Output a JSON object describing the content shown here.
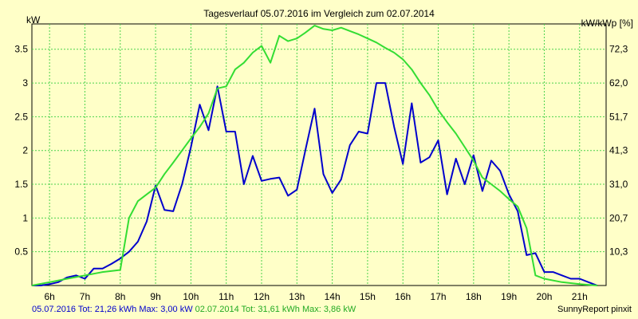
{
  "chart_data": {
    "type": "line",
    "title": "Tagesverlauf 05.07.2016 im Vergleich zum 02.07.2014",
    "ylabel_left": "kW",
    "ylabel_right": "kW/kWp [%]",
    "ylim": [
      0,
      3.875
    ],
    "grid": true,
    "x_ticks": [
      "6h",
      "7h",
      "8h",
      "9h",
      "10h",
      "11h",
      "12h",
      "13h",
      "14h",
      "15h",
      "16h",
      "17h",
      "18h",
      "19h",
      "20h",
      "21h"
    ],
    "y_ticks_left": [
      "0.5",
      "1",
      "1.5",
      "2",
      "2.5",
      "3",
      "3.5"
    ],
    "y_ticks_right": [
      "10,3",
      "20,7",
      "31,0",
      "41,3",
      "51,7",
      "62,0",
      "72,3"
    ],
    "colors": {
      "background": "#ffffc8",
      "grid": "#4cd24c",
      "axis": "#000000",
      "series_2016": "#0000cc",
      "series_2014": "#33dd33"
    },
    "series": [
      {
        "key": "s2016",
        "x": [
          5.5,
          5.75,
          6.0,
          6.25,
          6.5,
          6.75,
          7.0,
          7.25,
          7.5,
          7.75,
          8.0,
          8.25,
          8.5,
          8.75,
          9.0,
          9.25,
          9.5,
          9.75,
          10.0,
          10.25,
          10.5,
          10.75,
          11.0,
          11.25,
          11.5,
          11.75,
          12.0,
          12.25,
          12.5,
          12.75,
          13.0,
          13.25,
          13.5,
          13.75,
          14.0,
          14.25,
          14.5,
          14.75,
          15.0,
          15.25,
          15.5,
          15.75,
          16.0,
          16.25,
          16.5,
          16.75,
          17.0,
          17.25,
          17.5,
          17.75,
          18.0,
          18.25,
          18.5,
          18.75,
          19.0,
          19.25,
          19.5,
          19.75,
          20.0,
          20.25,
          20.5,
          20.75,
          21.0,
          21.25,
          21.5
        ],
        "y": [
          0,
          0,
          0.02,
          0.05,
          0.12,
          0.15,
          0.1,
          0.25,
          0.25,
          0.32,
          0.4,
          0.5,
          0.65,
          0.95,
          1.48,
          1.12,
          1.1,
          1.5,
          2.05,
          2.68,
          2.3,
          2.95,
          2.28,
          2.28,
          1.5,
          1.92,
          1.55,
          1.58,
          1.6,
          1.33,
          1.42,
          2.03,
          2.62,
          1.65,
          1.37,
          1.57,
          2.08,
          2.28,
          2.25,
          3.0,
          3.0,
          2.35,
          1.8,
          2.7,
          1.82,
          1.9,
          2.15,
          1.35,
          1.88,
          1.5,
          1.93,
          1.4,
          1.85,
          1.7,
          1.35,
          1.1,
          0.45,
          0.48,
          0.2,
          0.2,
          0.15,
          0.1,
          0.1,
          0.05,
          0
        ]
      },
      {
        "key": "s2014",
        "x": [
          5.5,
          6.0,
          6.5,
          7.0,
          7.5,
          8.0,
          8.25,
          8.5,
          8.75,
          9.0,
          9.25,
          9.5,
          9.75,
          10.0,
          10.25,
          10.5,
          10.75,
          11.0,
          11.25,
          11.5,
          11.75,
          12.0,
          12.25,
          12.5,
          12.75,
          13.0,
          13.25,
          13.5,
          13.75,
          14.0,
          14.25,
          14.5,
          14.75,
          15.0,
          15.25,
          15.5,
          15.75,
          16.0,
          16.25,
          16.5,
          16.75,
          17.0,
          17.25,
          17.5,
          17.75,
          18.0,
          18.25,
          18.5,
          18.75,
          19.0,
          19.25,
          19.5,
          19.75,
          20.0,
          20.5,
          21.0,
          21.5
        ],
        "y": [
          0,
          0.05,
          0.1,
          0.15,
          0.2,
          0.23,
          1.0,
          1.25,
          1.35,
          1.45,
          1.65,
          1.82,
          2.0,
          2.18,
          2.35,
          2.55,
          2.92,
          2.95,
          3.2,
          3.3,
          3.45,
          3.55,
          3.3,
          3.7,
          3.62,
          3.66,
          3.75,
          3.85,
          3.8,
          3.78,
          3.82,
          3.77,
          3.72,
          3.66,
          3.6,
          3.52,
          3.45,
          3.35,
          3.2,
          3.0,
          2.82,
          2.6,
          2.42,
          2.25,
          2.05,
          1.85,
          1.6,
          1.5,
          1.4,
          1.28,
          1.17,
          0.85,
          0.15,
          0.1,
          0.05,
          0.02,
          0
        ]
      }
    ]
  },
  "footer": {
    "s2016_text": "05.07.2016 Tot: 21,26 kWh Max: 3,00 kW",
    "s2014_text": "02.07.2014 Tot: 31,61 kWh Max: 3,86 kW",
    "credit": "SunnyReport pinxit"
  }
}
